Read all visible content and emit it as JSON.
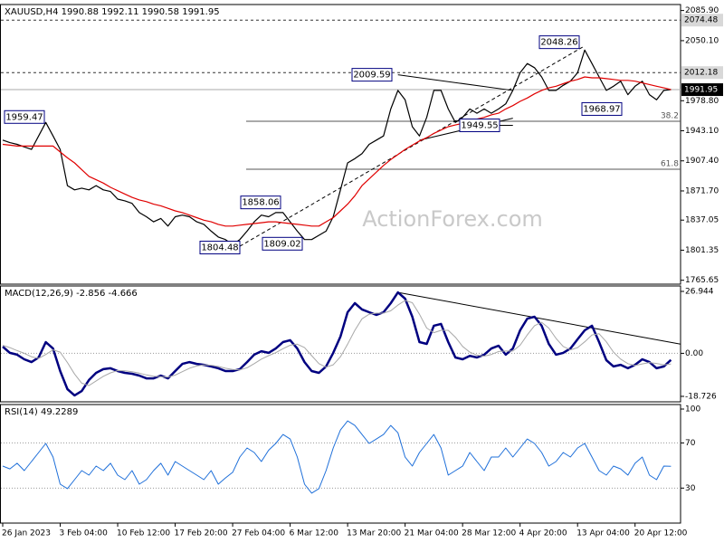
{
  "chart_data": [
    {
      "type": "line",
      "title": "XAUUSD,H4  1990.88 1992.11 1990.58 1991.95",
      "watermark": "ActionForex.com",
      "categories": [
        "26 Jan 2023",
        null,
        null,
        null,
        null,
        null,
        null,
        null,
        "3 Feb 04:00",
        null,
        null,
        null,
        null,
        null,
        null,
        null,
        "10 Feb 12:00",
        null,
        null,
        null,
        null,
        null,
        null,
        null,
        "17 Feb 20:00",
        null,
        null,
        null,
        null,
        null,
        null,
        null,
        "27 Feb 04:00",
        null,
        null,
        null,
        null,
        null,
        null,
        null,
        "6 Mar 12:00",
        null,
        null,
        null,
        null,
        null,
        null,
        null,
        "13 Mar 20:00",
        null,
        null,
        null,
        null,
        null,
        null,
        null,
        "21 Mar 04:00",
        null,
        null,
        null,
        null,
        null,
        null,
        null,
        "28 Mar 12:00",
        null,
        null,
        null,
        null,
        null,
        null,
        null,
        "4 Apr 20:00",
        null,
        null,
        null,
        null,
        null,
        null,
        null,
        "13 Apr 04:00",
        null,
        null,
        null,
        null,
        null,
        null,
        null,
        "20 Apr 12:00",
        null,
        null,
        null,
        null,
        null
      ],
      "series": [
        {
          "color": "#000000",
          "values": [
            1932,
            1929,
            1927,
            1924,
            1921,
            1937,
            1953,
            1937,
            1921,
            1878,
            1873,
            1875,
            1873,
            1878,
            1873,
            1871,
            1862,
            1860,
            1857,
            1846,
            1841,
            1835,
            1839,
            1830,
            1841,
            1843,
            1841,
            1835,
            1832,
            1824,
            1817,
            1814,
            1808,
            1814,
            1824,
            1835,
            1843,
            1841,
            1846,
            1846,
            1835,
            1824,
            1814,
            1814,
            1819,
            1824,
            1841,
            1873,
            1905,
            1910,
            1916,
            1927,
            1932,
            1937,
            1969,
            1991,
            1980,
            1948,
            1937,
            1959,
            1991,
            1991,
            1969,
            1953,
            1959,
            1969,
            1964,
            1969,
            1964,
            1969,
            1975,
            1991,
            2012,
            2023,
            2018,
            2007,
            1991,
            1991,
            1997,
            2002,
            2012,
            2039,
            2023,
            2007,
            1991,
            1996,
            2002,
            1986,
            1996,
            2002,
            1986,
            1980,
            1991,
            1991.95
          ]
        },
        {
          "color": "#e00000",
          "values": [
            1927,
            1926,
            1925,
            1925,
            1925,
            1925,
            1925,
            1925,
            1918,
            1911,
            1905,
            1897,
            1889,
            1885,
            1881,
            1876,
            1872,
            1868,
            1864,
            1861,
            1859,
            1856,
            1854,
            1851,
            1848,
            1846,
            1843,
            1840,
            1837,
            1835,
            1832,
            1830,
            1830,
            1831,
            1832,
            1833,
            1834,
            1835,
            1835,
            1834,
            1833,
            1832,
            1831,
            1830,
            1830,
            1835,
            1840,
            1848,
            1856,
            1866,
            1878,
            1886,
            1894,
            1902,
            1909,
            1915,
            1921,
            1926,
            1931,
            1935,
            1940,
            1944,
            1948,
            1950,
            1952,
            1955,
            1957,
            1959,
            1962,
            1964,
            1969,
            1973,
            1978,
            1982,
            1987,
            1991,
            1994,
            1996,
            1999,
            2002,
            2004,
            2007,
            2006,
            2006,
            2005,
            2004,
            2003,
            2003,
            2002,
            2000,
            1998,
            1996,
            1994,
            1992
          ]
        }
      ],
      "ylim": [
        1761,
        2093
      ],
      "yticks": [
        {
          "value": 2085.9,
          "label": "2085.90"
        },
        {
          "value": 2050.1,
          "label": "2050.10"
        },
        {
          "value": 1978.8,
          "label": "1978.80"
        },
        {
          "value": 1943.1,
          "label": "1943.10"
        },
        {
          "value": 1907.4,
          "label": "1907.40"
        },
        {
          "value": 1871.7,
          "label": "1871.70"
        },
        1837.05,
        1801.35,
        1765.65
      ],
      "levels": [
        {
          "value": 2074.48,
          "style": "dashed"
        },
        {
          "value": 2012.18,
          "style": "dashed"
        },
        {
          "value": 1991.95,
          "style": "current"
        }
      ],
      "fib": [
        {
          "value": 1954.4,
          "label": "38.2"
        },
        {
          "value": 1897.5,
          "label": "61.8"
        }
      ],
      "price_labels": [
        2048.26,
        2009.59,
        1959.47,
        1858.06,
        1804.48,
        1809.02,
        1949.55,
        1968.97
      ],
      "trendlines": [
        {
          "from": [
            55,
            2009.59
          ],
          "to": [
            71,
            1991
          ],
          "dashed": false
        },
        {
          "from": [
            58,
            1932
          ],
          "to": [
            71,
            1958
          ],
          "dashed": false
        },
        {
          "from": [
            64,
            1949.55
          ],
          "to": [
            71,
            1949.55
          ],
          "dashed": false
        },
        {
          "from": [
            33,
            1806
          ],
          "to": [
            81,
            2044
          ],
          "dashed": true
        }
      ]
    },
    {
      "type": "line",
      "title": "MACD(12,26,9) -2.856 -4.666",
      "series": [
        {
          "color": "#000080",
          "values": [
            2.9,
            0.2,
            -0.6,
            -2.6,
            -3.8,
            -1.8,
            4.9,
            2.1,
            -7.7,
            -15.6,
            -18.3,
            -16.4,
            -11.6,
            -8.5,
            -6.9,
            -6.5,
            -7.7,
            -8.5,
            -8.9,
            -9.7,
            -10.9,
            -10.9,
            -9.7,
            -10.9,
            -7.7,
            -4.6,
            -3.8,
            -4.6,
            -5.0,
            -5.7,
            -6.5,
            -7.7,
            -7.7,
            -6.9,
            -3.8,
            -0.6,
            0.9,
            0.2,
            2.1,
            4.9,
            5.7,
            2.1,
            -3.8,
            -7.7,
            -8.5,
            -5.7,
            0.2,
            7.3,
            17.9,
            21.8,
            19.1,
            17.9,
            16.7,
            17.9,
            21.8,
            26.5,
            23.8,
            15.9,
            4.9,
            4.1,
            12.0,
            12.8,
            4.9,
            -1.8,
            -2.6,
            -1.1,
            -1.8,
            -0.6,
            2.1,
            3.3,
            -0.6,
            2.1,
            10.0,
            15.1,
            15.9,
            12.0,
            4.1,
            -0.6,
            0.2,
            2.1,
            6.1,
            10.0,
            12.0,
            4.9,
            -3.0,
            -5.7,
            -5.0,
            -6.5,
            -5.0,
            -2.6,
            -3.8,
            -6.5,
            -5.7,
            -2.856
          ]
        },
        {
          "color": "#a8a8a8",
          "values": [
            3.5,
            2.5,
            1.2,
            0,
            -1.5,
            -2.2,
            -0.5,
            1.5,
            0.5,
            -4,
            -9,
            -13,
            -14,
            -12,
            -10,
            -8.5,
            -7.5,
            -7.6,
            -8,
            -8.6,
            -9.4,
            -10,
            -10.2,
            -10.3,
            -9.5,
            -8,
            -6.5,
            -5.5,
            -5,
            -5.2,
            -5.7,
            -6.5,
            -7,
            -7.2,
            -6.3,
            -4.5,
            -2.5,
            -1,
            0.3,
            2,
            3.5,
            4,
            2.5,
            -1,
            -4.5,
            -6,
            -5,
            -1.5,
            4,
            10,
            15,
            17,
            17.5,
            17.5,
            18.5,
            21,
            23,
            22,
            17,
            11,
            9,
            10,
            10,
            7,
            3,
            0.5,
            -0.8,
            -1.2,
            -0.5,
            0.8,
            1,
            1,
            3.5,
            8,
            12,
            13.5,
            11,
            6.5,
            3,
            1.5,
            2.5,
            5,
            8,
            8.5,
            5,
            0.5,
            -2.5,
            -4.5,
            -5.3,
            -4.6,
            -4,
            -4.4,
            -5,
            -4.666
          ]
        }
      ],
      "ylim": [
        -21.1,
        29.3
      ],
      "yticks": [
        26.944,
        {
          "value": 0,
          "label": "0.00"
        },
        -18.726
      ],
      "trendlines": [
        {
          "from": [
            55,
            26.5
          ],
          "to": [
            95,
            4
          ],
          "dashed": false
        }
      ]
    },
    {
      "type": "line",
      "title": "RSI(14) 49.2289",
      "series": [
        {
          "color": "#1e6fd9",
          "values": [
            49.5,
            47,
            52,
            45.5,
            53.5,
            61.5,
            69.5,
            57.5,
            33.5,
            29.5,
            37.5,
            45.5,
            41.5,
            49.5,
            45.5,
            52,
            41.5,
            37.5,
            45.5,
            33.5,
            37.5,
            45.5,
            52,
            41.5,
            53.5,
            49.5,
            45.5,
            41.5,
            37.5,
            45.5,
            33.5,
            39,
            44,
            57.5,
            65.5,
            61.5,
            53.5,
            63.5,
            69.5,
            77.5,
            73.5,
            57.5,
            33.5,
            25.5,
            29.5,
            45.5,
            65.5,
            81.5,
            89.5,
            85.5,
            77.5,
            69.5,
            73.5,
            77.5,
            85.5,
            79,
            57.5,
            49.5,
            61.5,
            69.5,
            77.5,
            65.5,
            41.5,
            45.5,
            49.5,
            61.5,
            53.5,
            45.5,
            57.5,
            57.5,
            65.5,
            57.5,
            65.5,
            73.5,
            69.5,
            61.5,
            49.5,
            53.5,
            61.5,
            57.5,
            65.5,
            69.5,
            57.5,
            45.5,
            41.5,
            49.5,
            47,
            41.5,
            52,
            57.5,
            41.5,
            37.5,
            49.5,
            49.2289
          ]
        }
      ],
      "ylim": [
        -1,
        104
      ],
      "yticks": [
        100,
        70,
        30
      ]
    }
  ]
}
